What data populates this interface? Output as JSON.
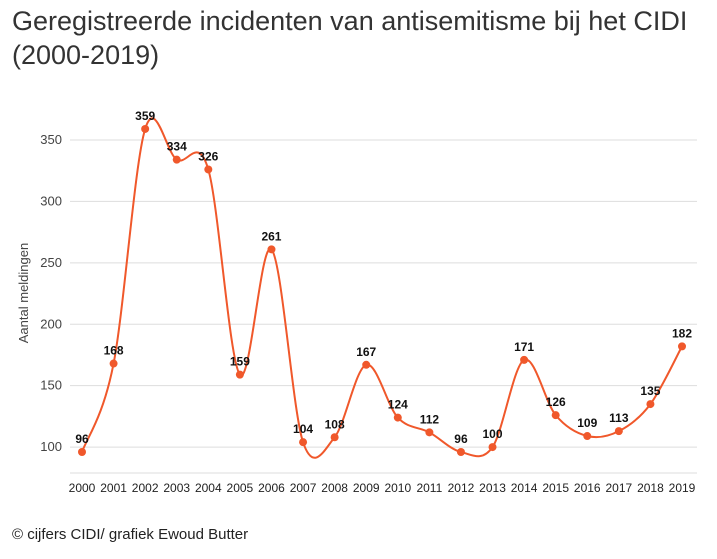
{
  "title": "Geregistreerde incidenten van antisemitisme bij het CIDI (2000-2019)",
  "footer": "© cijfers CIDI/ grafiek Ewoud Butter",
  "colors": {
    "line": "#f0582b",
    "grid": "#dddddd",
    "text": "#333333"
  },
  "chart_data": {
    "type": "line",
    "title": "Geregistreerde incidenten van antisemitisme bij het CIDI (2000-2019)",
    "xlabel": "",
    "ylabel": "Aantal meldingen",
    "categories": [
      "2000",
      "2001",
      "2002",
      "2003",
      "2004",
      "2005",
      "2006",
      "2007",
      "2008",
      "2009",
      "2010",
      "2011",
      "2012",
      "2013",
      "2014",
      "2015",
      "2016",
      "2017",
      "2018",
      "2019"
    ],
    "values": [
      96,
      168,
      359,
      334,
      326,
      159,
      261,
      104,
      108,
      167,
      124,
      112,
      96,
      100,
      171,
      126,
      109,
      113,
      135,
      182
    ],
    "yticks": [
      100,
      150,
      200,
      250,
      300,
      350
    ],
    "ylim": [
      80,
      370
    ],
    "grid": true,
    "legend": "none"
  }
}
